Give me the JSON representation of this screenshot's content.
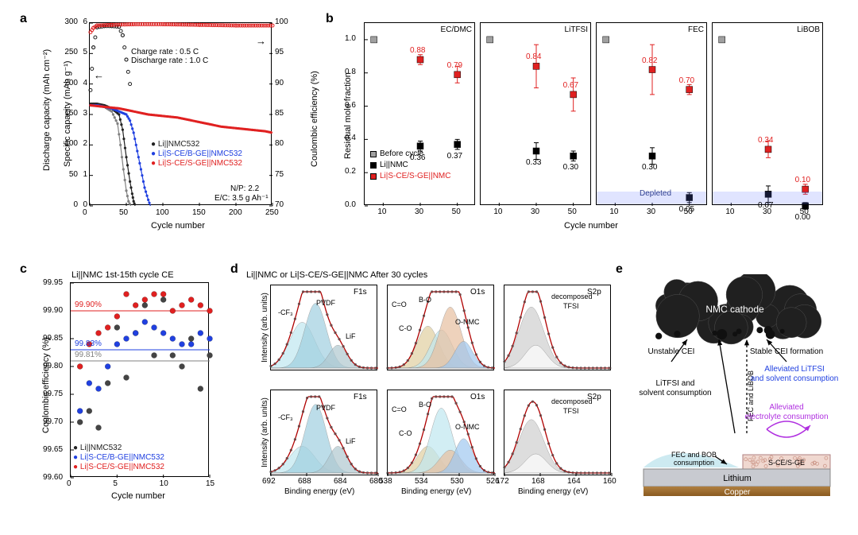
{
  "colors": {
    "black": "#222222",
    "blue": "#2040e0",
    "red": "#e02020",
    "grey": "#808080",
    "lightgrey": "#cccccc",
    "purple": "#b030e0",
    "nmc": "#303030",
    "copper1": "#b08040",
    "copper2": "#8a5a20",
    "lithium": "#c8cad0",
    "fec": "#c8e8f0",
    "sge": "#f0d8d0"
  },
  "panelA": {
    "label": "a",
    "x_label": "Cycle number",
    "y1_label": "Discharge capacity (mAh cm⁻²)",
    "y2_label": "Specific capacity (mAh g⁻¹)",
    "y3_label": "Coulombic efficiency (%)",
    "xmin": 0,
    "xmax": 250,
    "y1min": 0,
    "y1max": 6,
    "y2min": 0,
    "y2max": 300,
    "y3min": 70,
    "y3max": 100,
    "xticks": [
      0,
      50,
      100,
      150,
      200,
      250
    ],
    "y1ticks": [
      0,
      1,
      2,
      3,
      4,
      5,
      6
    ],
    "y2ticks": [
      0,
      50,
      100,
      150,
      200,
      250,
      300
    ],
    "y3ticks": [
      70,
      75,
      80,
      85,
      90,
      95,
      100
    ],
    "annot_rates": "Charge rate : 0.5 C\nDischarge rate : 1.0 C",
    "annot_np": "N/P: 2.2",
    "annot_ec": "E/C: 3.5 g Ah⁻¹",
    "legend": [
      {
        "text": "Li||NMC532",
        "color": "#222222"
      },
      {
        "text": "Li|S-CE/B-GE||NMC532",
        "color": "#2040e0"
      },
      {
        "text": "Li|S-CE/S-GE||NMC532",
        "color": "#e02020"
      }
    ],
    "series_cap": {
      "black": [
        [
          1,
          3.35
        ],
        [
          10,
          3.35
        ],
        [
          20,
          3.3
        ],
        [
          30,
          3.2
        ],
        [
          40,
          3.0
        ],
        [
          45,
          2.5
        ],
        [
          50,
          1.6
        ],
        [
          55,
          0.8
        ],
        [
          58,
          0.4
        ],
        [
          60,
          0.15
        ],
        [
          62,
          0
        ]
      ],
      "grey": [
        [
          1,
          3.3
        ],
        [
          10,
          3.3
        ],
        [
          20,
          3.25
        ],
        [
          30,
          3.1
        ],
        [
          38,
          2.7
        ],
        [
          42,
          2.0
        ],
        [
          46,
          1.2
        ],
        [
          50,
          0.5
        ],
        [
          53,
          0.15
        ],
        [
          56,
          0
        ]
      ],
      "blue": [
        [
          1,
          3.3
        ],
        [
          10,
          3.3
        ],
        [
          20,
          3.25
        ],
        [
          30,
          3.2
        ],
        [
          40,
          3.1
        ],
        [
          50,
          3.0
        ],
        [
          55,
          2.8
        ],
        [
          60,
          2.4
        ],
        [
          65,
          1.8
        ],
        [
          70,
          1.2
        ],
        [
          75,
          0.6
        ],
        [
          80,
          0.2
        ],
        [
          83,
          0
        ]
      ],
      "red": [
        [
          1,
          3.3
        ],
        [
          20,
          3.25
        ],
        [
          40,
          3.2
        ],
        [
          60,
          3.1
        ],
        [
          80,
          3.0
        ],
        [
          100,
          2.95
        ],
        [
          120,
          2.9
        ],
        [
          140,
          2.8
        ],
        [
          160,
          2.7
        ],
        [
          180,
          2.6
        ],
        [
          200,
          2.55
        ],
        [
          220,
          2.5
        ],
        [
          240,
          2.45
        ],
        [
          250,
          2.4
        ]
      ]
    },
    "series_ce": {
      "black": [
        [
          1,
          89
        ],
        [
          5,
          96
        ],
        [
          10,
          99.3
        ],
        [
          20,
          99.5
        ],
        [
          30,
          99.5
        ],
        [
          40,
          99.4
        ],
        [
          45,
          98
        ],
        [
          50,
          94
        ],
        [
          55,
          90
        ]
      ],
      "red": [
        [
          1,
          98.5
        ],
        [
          5,
          99.2
        ],
        [
          10,
          99.6
        ],
        [
          30,
          99.7
        ],
        [
          60,
          99.8
        ],
        [
          100,
          99.8
        ],
        [
          150,
          99.7
        ],
        [
          200,
          99.6
        ],
        [
          250,
          99.6
        ]
      ]
    }
  },
  "panelB": {
    "label": "b",
    "y_label": "Residual mole fraction",
    "x_label": "Cycle number",
    "xticks": [
      10,
      30,
      50
    ],
    "ymin": 0,
    "ymax": 1.1,
    "yticks": [
      0.0,
      0.2,
      0.4,
      0.6,
      0.8,
      1.0
    ],
    "subtitles": [
      "EC/DMC",
      "LiTFSI",
      "FEC",
      "LiBOB"
    ],
    "depleted_text": "Depleted",
    "legend": [
      {
        "text": "Before cycle",
        "marker": "grey-square"
      },
      {
        "text": "Li||NMC",
        "marker": "black-square"
      },
      {
        "text": "Li|S-CE/S-GE||NMC",
        "marker": "red-square"
      }
    ],
    "data": [
      {
        "title": "EC/DMC",
        "pts": [
          {
            "x": 5,
            "y": 1.0,
            "col": "grey"
          },
          {
            "x": 30,
            "y": 0.36,
            "col": "black",
            "lab": "0.36",
            "err": 0.03
          },
          {
            "x": 50,
            "y": 0.37,
            "col": "black",
            "lab": "0.37",
            "err": 0.03
          },
          {
            "x": 30,
            "y": 0.88,
            "col": "red",
            "lab": "0.88",
            "err": 0.03
          },
          {
            "x": 50,
            "y": 0.79,
            "col": "red",
            "lab": "0.79",
            "err": 0.05
          }
        ]
      },
      {
        "title": "LiTFSI",
        "pts": [
          {
            "x": 5,
            "y": 1.0,
            "col": "grey"
          },
          {
            "x": 30,
            "y": 0.33,
            "col": "black",
            "lab": "0.33",
            "err": 0.05
          },
          {
            "x": 50,
            "y": 0.3,
            "col": "black",
            "lab": "0.30",
            "err": 0.03
          },
          {
            "x": 30,
            "y": 0.84,
            "col": "red",
            "lab": "0.84",
            "err": 0.13
          },
          {
            "x": 50,
            "y": 0.67,
            "col": "red",
            "lab": "0.67",
            "err": 0.1
          }
        ]
      },
      {
        "title": "FEC",
        "pts": [
          {
            "x": 5,
            "y": 1.0,
            "col": "grey"
          },
          {
            "x": 30,
            "y": 0.3,
            "col": "black",
            "lab": "0.30",
            "err": 0.05
          },
          {
            "x": 50,
            "y": 0.05,
            "col": "black",
            "lab": "0.05",
            "err": 0.03
          },
          {
            "x": 30,
            "y": 0.82,
            "col": "red",
            "lab": "0.82",
            "err": 0.15
          },
          {
            "x": 50,
            "y": 0.7,
            "col": "red",
            "lab": "0.70",
            "err": 0.03
          }
        ]
      },
      {
        "title": "LiBOB",
        "pts": [
          {
            "x": 5,
            "y": 1.0,
            "col": "grey"
          },
          {
            "x": 30,
            "y": 0.07,
            "col": "black",
            "lab": "0.07",
            "err": 0.05
          },
          {
            "x": 50,
            "y": 0.0,
            "col": "black",
            "lab": "0.00",
            "err": 0.02
          },
          {
            "x": 30,
            "y": 0.34,
            "col": "red",
            "lab": "0.34",
            "err": 0.05
          },
          {
            "x": 50,
            "y": 0.1,
            "col": "red",
            "lab": "0.10",
            "err": 0.03
          }
        ]
      }
    ]
  },
  "panelC": {
    "label": "c",
    "title": "Li||NMC 1st-15th cycle CE",
    "y_label": "Coulombic efficiency (%)",
    "x_label": "Cycle number",
    "xticks": [
      0,
      5,
      10,
      15
    ],
    "ymin": 99.6,
    "ymax": 99.95,
    "yticks": [
      99.6,
      99.65,
      99.7,
      99.75,
      99.8,
      99.85,
      99.9,
      99.95
    ],
    "lines": [
      {
        "y": 99.9,
        "label": "99.90%",
        "color": "#e02020"
      },
      {
        "y": 99.83,
        "label": "99.83%",
        "color": "#2040e0"
      },
      {
        "y": 99.81,
        "label": "99.81%",
        "color": "#808080"
      }
    ],
    "legend": [
      {
        "text": "Li||NMC532",
        "color": "#222222"
      },
      {
        "text": "Li|S-CE/B-GE||NMC532",
        "color": "#2040e0"
      },
      {
        "text": "Li|S-CE/S-GE||NMC532",
        "color": "#e02020"
      }
    ],
    "series": {
      "black": [
        [
          1,
          99.7
        ],
        [
          2,
          99.72
        ],
        [
          3,
          99.69
        ],
        [
          4,
          99.77
        ],
        [
          5,
          99.87
        ],
        [
          6,
          99.78
        ],
        [
          7,
          99.86
        ],
        [
          8,
          99.91
        ],
        [
          9,
          99.82
        ],
        [
          10,
          99.92
        ],
        [
          11,
          99.82
        ],
        [
          12,
          99.8
        ],
        [
          13,
          99.85
        ],
        [
          14,
          99.76
        ],
        [
          15,
          99.82
        ]
      ],
      "blue": [
        [
          1,
          99.72
        ],
        [
          2,
          99.77
        ],
        [
          3,
          99.76
        ],
        [
          4,
          99.8
        ],
        [
          5,
          99.84
        ],
        [
          6,
          99.85
        ],
        [
          7,
          99.86
        ],
        [
          8,
          99.88
        ],
        [
          9,
          99.87
        ],
        [
          10,
          99.86
        ],
        [
          11,
          99.85
        ],
        [
          12,
          99.84
        ],
        [
          13,
          99.84
        ],
        [
          14,
          99.86
        ],
        [
          15,
          99.85
        ]
      ],
      "red": [
        [
          1,
          99.8
        ],
        [
          2,
          99.84
        ],
        [
          3,
          99.86
        ],
        [
          4,
          99.87
        ],
        [
          5,
          99.89
        ],
        [
          6,
          99.93
        ],
        [
          7,
          99.91
        ],
        [
          8,
          99.92
        ],
        [
          9,
          99.93
        ],
        [
          10,
          99.93
        ],
        [
          11,
          99.9
        ],
        [
          12,
          99.91
        ],
        [
          13,
          99.92
        ],
        [
          14,
          99.91
        ],
        [
          15,
          99.9
        ]
      ]
    }
  },
  "panelD": {
    "label": "d",
    "title": "Li||NMC or Li|S-CE/S-GE||NMC After 30 cycles",
    "x_label": "Binding energy (eV)",
    "y_label": "Intensity (arb. units)",
    "cols": [
      {
        "name": "F1s",
        "xmin": 680,
        "xmax": 692,
        "xticks": [
          692,
          688,
          684,
          680
        ],
        "peaks": [
          "-CF₃",
          "PVDF",
          "LiF"
        ],
        "fills": [
          "#c0e8f0",
          "#a0d0e0",
          "#b0c8d0"
        ]
      },
      {
        "name": "O1s",
        "xmin": 526,
        "xmax": 538,
        "xticks": [
          538,
          534,
          530,
          526
        ],
        "peaks": [
          "C=O",
          "B-O",
          "C-O",
          "O-NMC"
        ],
        "fills": [
          "#e0d0a0",
          "#c0e8f0",
          "#e8c0a0",
          "#a0c8f0"
        ]
      },
      {
        "name": "S2p",
        "xmin": 160,
        "xmax": 172,
        "xticks": [
          172,
          168,
          164,
          160
        ],
        "peaks": [
          "decomposed",
          "TFSI"
        ],
        "fills": [
          "#d0d0d0",
          "#ffffff"
        ]
      }
    ]
  },
  "panelE": {
    "label": "e",
    "items": {
      "cathode": "NMC cathode",
      "unstable": "Unstable CEI",
      "stable": "Stable CEI formation",
      "cons1": "LiTFSI and\nsolvent consumption",
      "cons2": "Alleviated LiTFSI\nand solvent consumption",
      "cons3": "Alleviated\nelectrolyte consumption",
      "fecbob": "FEC and BOB\nconsumption",
      "fecand": "FEC and\nLiBOB",
      "scesge": "S-CE/S-GE",
      "li": "Lithium",
      "cu": "Copper"
    }
  }
}
